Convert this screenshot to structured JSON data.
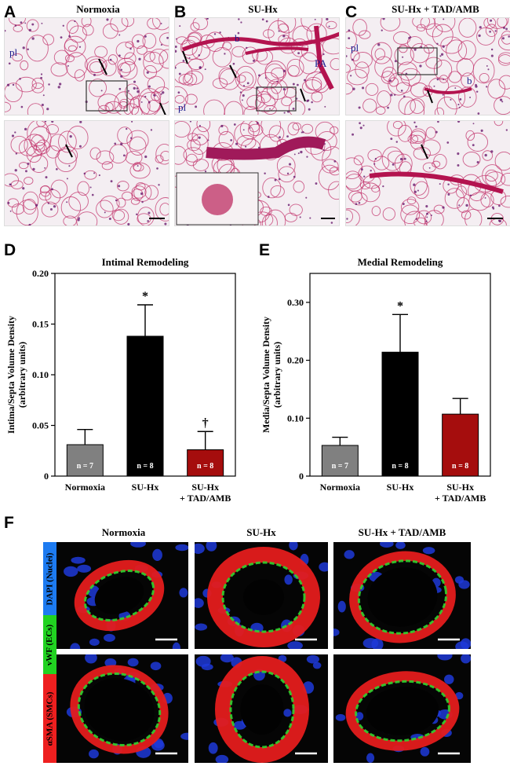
{
  "panel_letters": {
    "a": "A",
    "b": "B",
    "c": "C",
    "d": "D",
    "e": "E",
    "f": "F"
  },
  "histology": {
    "titles": [
      "Normoxia",
      "SU-Hx",
      "SU-Hx + TAD/AMB"
    ],
    "labels": {
      "pl": "pl",
      "b": "b",
      "pa": "PA"
    }
  },
  "colors": {
    "normoxia": "#808080",
    "suhx": "#000000",
    "treated": "#a50d0d",
    "tissue": "#c2306a",
    "nuclei": "#1f3ad8",
    "vwf": "#2fd42f",
    "sma": "#e41c1c"
  },
  "chart_data": [
    {
      "type": "bar",
      "title": "Intimal Remodeling",
      "ylabel": "Intima/Septa Volume Density (arbitrary units)",
      "ylabel_lines": [
        "Intima/Septa Volume Density",
        "(arbitrary units)"
      ],
      "ylim": [
        0,
        0.2
      ],
      "yticks": [
        0,
        0.05,
        0.1,
        0.15,
        0.2
      ],
      "ytick_labels": [
        "0",
        "0.05",
        "0.10",
        "0.15",
        "0.20"
      ],
      "categories": [
        "Normoxia",
        "SU-Hx",
        "SU-Hx + TAD/AMB"
      ],
      "category_lines": [
        [
          "Normoxia"
        ],
        [
          "SU-Hx"
        ],
        [
          "SU-Hx",
          "+ TAD/AMB"
        ]
      ],
      "values": [
        0.031,
        0.138,
        0.026
      ],
      "errors": [
        0.015,
        0.031,
        0.018
      ],
      "n_labels": [
        "n = 7",
        "n = 8",
        "n = 8"
      ],
      "markers": [
        "",
        "*",
        "†"
      ],
      "grid": false
    },
    {
      "type": "bar",
      "title": "Medial Remodeling",
      "ylabel": "Media/Septa Volume Density (arbitrary units)",
      "ylabel_lines": [
        "Media/Septa Volume Density",
        "(arbitrary units)"
      ],
      "ylim": [
        0,
        0.35
      ],
      "yticks": [
        0,
        0.1,
        0.2,
        0.3
      ],
      "ytick_labels": [
        "0",
        "0.10",
        "0.20",
        "0.30"
      ],
      "categories": [
        "Normoxia",
        "SU-Hx",
        "SU-Hx + TAD/AMB"
      ],
      "category_lines": [
        [
          "Normoxia"
        ],
        [
          "SU-Hx"
        ],
        [
          "SU-Hx",
          "+ TAD/AMB"
        ]
      ],
      "values": [
        0.053,
        0.214,
        0.107
      ],
      "errors": [
        0.014,
        0.065,
        0.027
      ],
      "n_labels": [
        "n = 7",
        "n = 8",
        "n = 8"
      ],
      "markers": [
        "",
        "*",
        ""
      ],
      "grid": false
    }
  ],
  "immuno": {
    "titles": [
      "Normoxia",
      "SU-Hx",
      "SU-Hx + TAD/AMB"
    ],
    "stain_labels": {
      "dapi": "DAPI (Nuclei)",
      "vwf": "vWF (ECs)",
      "sma": "αSMA (SMCs)"
    }
  }
}
